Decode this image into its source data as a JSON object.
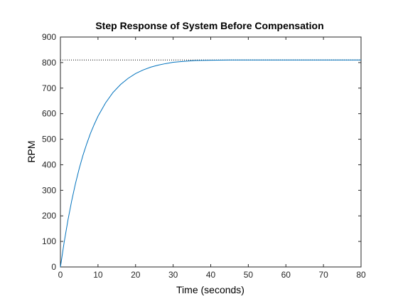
{
  "chart_data": {
    "type": "line",
    "title": "Step Response of System Before Compensation",
    "xlabel": "Time (seconds)",
    "ylabel": "RPM",
    "xlim": [
      0,
      80
    ],
    "ylim": [
      0,
      900
    ],
    "xticks": [
      0,
      10,
      20,
      30,
      40,
      50,
      60,
      70,
      80
    ],
    "yticks": [
      0,
      100,
      200,
      300,
      400,
      500,
      600,
      700,
      800,
      900
    ],
    "grid": false,
    "steady_state_value": 810,
    "series": [
      {
        "color": "#0072bd",
        "x": [
          0,
          1,
          2,
          3,
          4,
          5,
          6,
          7,
          8,
          9,
          10,
          12,
          14,
          16,
          18,
          20,
          22,
          24,
          26,
          28,
          30,
          33,
          36,
          40,
          45,
          50,
          55,
          60,
          65,
          70,
          75,
          80
        ],
        "y": [
          0,
          97,
          183,
          259,
          326,
          385,
          437,
          482,
          523,
          558,
          590,
          642,
          683,
          714,
          738,
          757,
          771,
          782,
          790,
          796,
          801,
          805,
          808,
          809,
          810,
          810,
          810,
          810,
          810,
          810,
          810,
          810
        ]
      }
    ],
    "reference_line": {
      "style": "dotted",
      "color": "#000000",
      "y": 810,
      "x": [
        0,
        80
      ]
    }
  }
}
